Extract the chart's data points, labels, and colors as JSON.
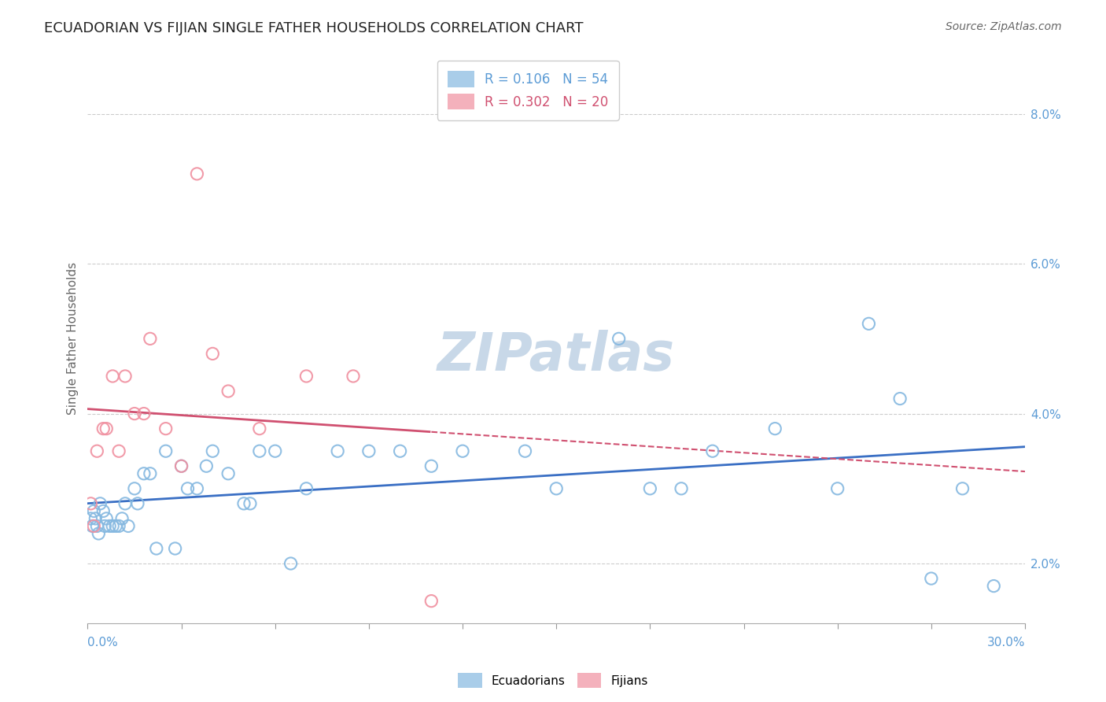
{
  "title": "ECUADORIAN VS FIJIAN SINGLE FATHER HOUSEHOLDS CORRELATION CHART",
  "source": "Source: ZipAtlas.com",
  "ylabel": "Single Father Households",
  "ecuadorians_color": "#85b8e0",
  "fijians_color": "#f090a0",
  "blue_line_color": "#3a6fc4",
  "pink_line_color": "#d05070",
  "watermark_color": "#c8d8e8",
  "background_color": "#ffffff",
  "xmin": 0.0,
  "xmax": 30.0,
  "ymin": 1.2,
  "ymax": 8.8,
  "y_ticks": [
    2.0,
    4.0,
    6.0,
    8.0
  ],
  "ecuadorians_x": [
    0.1,
    0.15,
    0.2,
    0.25,
    0.3,
    0.35,
    0.4,
    0.5,
    0.55,
    0.6,
    0.7,
    0.8,
    0.9,
    1.0,
    1.1,
    1.2,
    1.3,
    1.5,
    1.6,
    1.8,
    2.0,
    2.2,
    2.5,
    2.8,
    3.0,
    3.2,
    3.5,
    3.8,
    4.0,
    4.5,
    5.0,
    5.5,
    6.0,
    6.5,
    7.0,
    8.0,
    9.0,
    10.0,
    12.0,
    14.0,
    15.0,
    17.0,
    18.0,
    20.0,
    22.0,
    24.0,
    25.0,
    26.0,
    27.0,
    28.0,
    29.0,
    5.2,
    11.0,
    19.0
  ],
  "ecuadorians_y": [
    2.6,
    2.5,
    2.7,
    2.6,
    2.5,
    2.4,
    2.8,
    2.7,
    2.5,
    2.6,
    2.5,
    2.5,
    2.5,
    2.5,
    2.6,
    2.8,
    2.5,
    3.0,
    2.8,
    3.2,
    3.2,
    2.2,
    3.5,
    2.2,
    3.3,
    3.0,
    3.0,
    3.3,
    3.5,
    3.2,
    2.8,
    3.5,
    3.5,
    2.0,
    3.0,
    3.5,
    3.5,
    3.5,
    3.5,
    3.5,
    3.0,
    5.0,
    3.0,
    3.5,
    3.8,
    3.0,
    5.2,
    4.2,
    1.8,
    3.0,
    1.7,
    2.8,
    3.3,
    3.0
  ],
  "fijians_x": [
    0.1,
    0.2,
    0.3,
    0.5,
    0.6,
    0.8,
    1.0,
    1.2,
    1.5,
    1.8,
    2.0,
    2.5,
    3.0,
    3.5,
    4.0,
    4.5,
    5.5,
    7.0,
    8.5,
    11.0
  ],
  "fijians_y": [
    2.8,
    2.5,
    3.5,
    3.8,
    3.8,
    4.5,
    3.5,
    4.5,
    4.0,
    4.0,
    5.0,
    3.8,
    3.3,
    7.2,
    4.8,
    4.3,
    3.8,
    4.5,
    4.5,
    1.5
  ],
  "pink_solid_xmax": 11.0,
  "legend_label_ecu": "R = 0.106   N = 54",
  "legend_label_fij": "R = 0.302   N = 20",
  "legend_color_ecu": "#5b9bd5",
  "legend_color_fij": "#d05070",
  "legend_N_color": "#2060c0"
}
